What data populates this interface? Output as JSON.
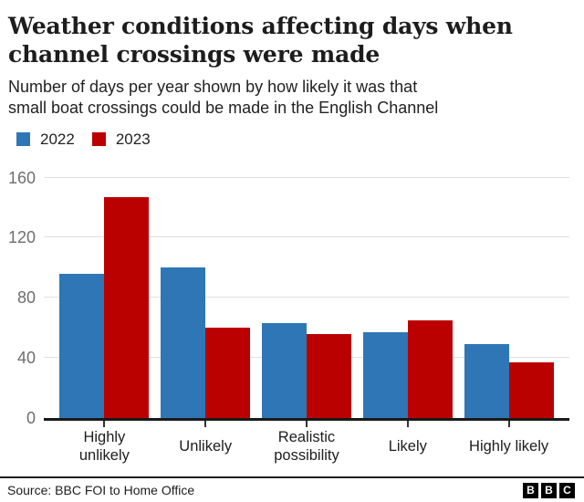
{
  "header": {
    "title_lines": [
      "Weather conditions affecting days when",
      "channel crossings were made"
    ],
    "subtitle_lines": [
      "Number of days per year shown by how likely it was that",
      "small boat crossings could be made in the English Channel"
    ]
  },
  "legend": {
    "items": [
      {
        "label": "2022",
        "color": "#2e76b5"
      },
      {
        "label": "2023",
        "color": "#bb0100"
      }
    ]
  },
  "chart_data": {
    "type": "bar",
    "title": "Weather conditions affecting days when channel crossings were made",
    "subtitle": "Number of days per year shown by how likely it was that small boat crossings could be made in the English Channel",
    "categories": [
      "Highly unlikely",
      "Unlikely",
      "Realistic possibility",
      "Likely",
      "Highly likely"
    ],
    "series": [
      {
        "name": "2022",
        "color": "#2e76b5",
        "values": [
          96,
          100,
          63,
          57,
          49
        ]
      },
      {
        "name": "2023",
        "color": "#bb0100",
        "values": [
          147,
          60,
          56,
          65,
          37
        ]
      }
    ],
    "xlabel": "",
    "ylabel": "",
    "ylim": [
      0,
      160
    ],
    "yticks": [
      0,
      40,
      80,
      120,
      160
    ],
    "grid": true,
    "legend_position": "top-left"
  },
  "colors": {
    "text": "#1d1d1d",
    "axis_label": "#6e6e6e",
    "gridline": "#e0e0e0",
    "baseline": "#1a1a1a"
  },
  "footer": {
    "source": "Source: BBC FOI to Home Office",
    "logo_letters": [
      "B",
      "B",
      "C"
    ]
  }
}
